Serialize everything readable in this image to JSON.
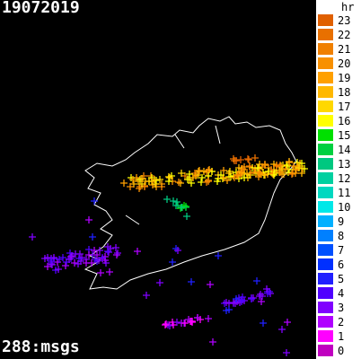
{
  "title": "19072019",
  "footer": "288:msgs",
  "legend": {
    "header": "hr",
    "items": [
      {
        "label": "23",
        "color": "#e06000"
      },
      {
        "label": "22",
        "color": "#e87000"
      },
      {
        "label": "21",
        "color": "#f08000"
      },
      {
        "label": "20",
        "color": "#f89000"
      },
      {
        "label": "19",
        "color": "#ffa000"
      },
      {
        "label": "18",
        "color": "#ffb800"
      },
      {
        "label": "17",
        "color": "#ffd800"
      },
      {
        "label": "16",
        "color": "#ffff00"
      },
      {
        "label": "15",
        "color": "#00e000"
      },
      {
        "label": "14",
        "color": "#00d040"
      },
      {
        "label": "13",
        "color": "#00c880"
      },
      {
        "label": "12",
        "color": "#00d0a0"
      },
      {
        "label": "11",
        "color": "#00d8c0"
      },
      {
        "label": "10",
        "color": "#00e8e8"
      },
      {
        "label": "9",
        "color": "#00b0ff"
      },
      {
        "label": "8",
        "color": "#0080ff"
      },
      {
        "label": "7",
        "color": "#0050ff"
      },
      {
        "label": "6",
        "color": "#0030ff"
      },
      {
        "label": "5",
        "color": "#2020ff"
      },
      {
        "label": "4",
        "color": "#5000ff"
      },
      {
        "label": "3",
        "color": "#8000ff"
      },
      {
        "label": "2",
        "color": "#b000ff"
      },
      {
        "label": "1",
        "color": "#ff00ff"
      },
      {
        "label": "0",
        "color": "#c000c0"
      }
    ]
  }
}
